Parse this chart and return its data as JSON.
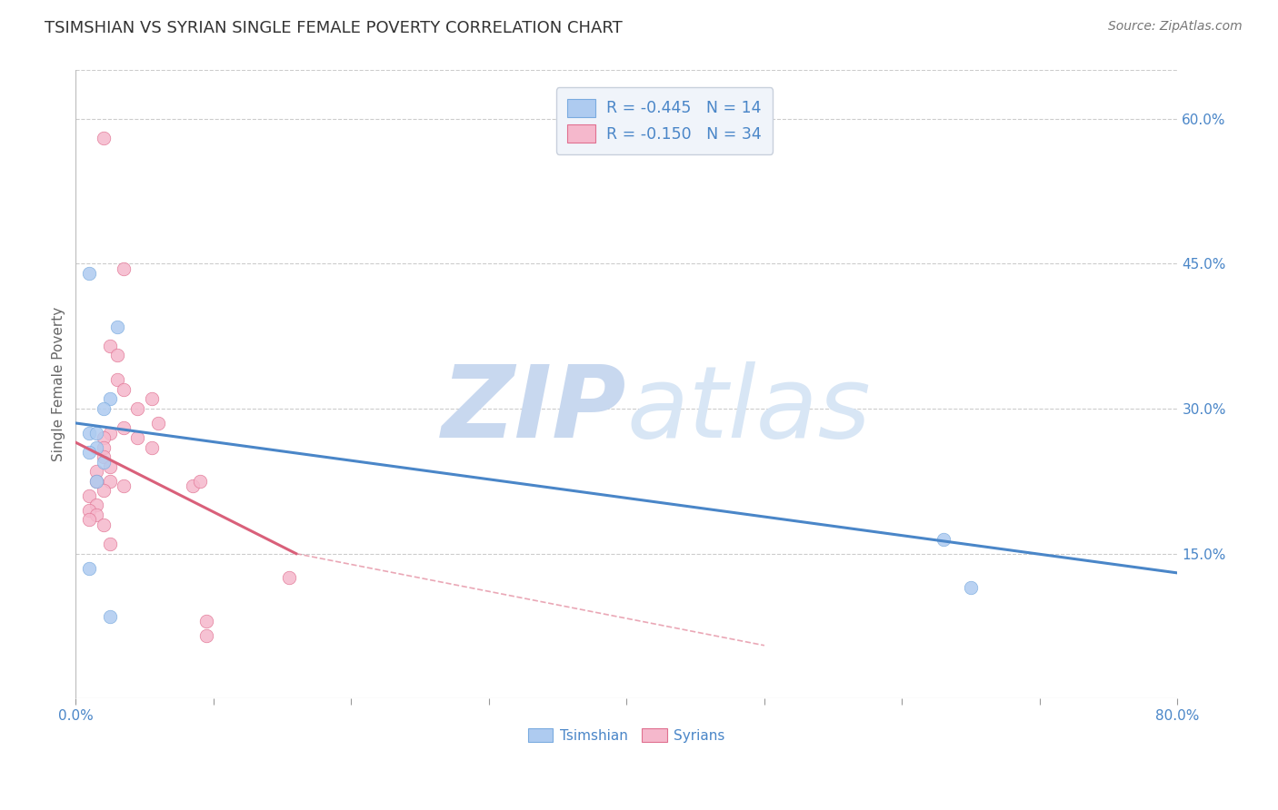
{
  "title": "TSIMSHIAN VS SYRIAN SINGLE FEMALE POVERTY CORRELATION CHART",
  "source_text": "Source: ZipAtlas.com",
  "ylabel": "Single Female Poverty",
  "xlim": [
    0.0,
    80.0
  ],
  "ylim": [
    0.0,
    65.0
  ],
  "xticks_labeled": [
    0.0,
    80.0
  ],
  "xticks_minor": [
    10.0,
    20.0,
    30.0,
    40.0,
    50.0,
    60.0,
    70.0
  ],
  "yticks_right": [
    15.0,
    30.0,
    45.0,
    60.0
  ],
  "watermark_zip": "ZIP",
  "watermark_atlas": "atlas",
  "legend_entries": [
    {
      "R": "-0.445",
      "N": "14",
      "dot_color": "#aecbf0",
      "edge_color": "#7aabdf"
    },
    {
      "R": "-0.150",
      "N": "34",
      "dot_color": "#f5b8cc",
      "edge_color": "#e07090"
    }
  ],
  "tsimshian_points": [
    [
      1.0,
      44.0
    ],
    [
      3.0,
      38.5
    ],
    [
      1.0,
      27.5
    ],
    [
      2.5,
      31.0
    ],
    [
      2.0,
      30.0
    ],
    [
      1.5,
      27.5
    ],
    [
      1.5,
      26.0
    ],
    [
      1.0,
      25.5
    ],
    [
      2.0,
      24.5
    ],
    [
      1.5,
      22.5
    ],
    [
      1.0,
      13.5
    ],
    [
      63.0,
      16.5
    ],
    [
      65.0,
      11.5
    ],
    [
      2.5,
      8.5
    ]
  ],
  "syrian_points": [
    [
      2.0,
      58.0
    ],
    [
      3.5,
      44.5
    ],
    [
      2.5,
      36.5
    ],
    [
      3.0,
      35.5
    ],
    [
      3.0,
      33.0
    ],
    [
      3.5,
      32.0
    ],
    [
      5.5,
      31.0
    ],
    [
      4.5,
      30.0
    ],
    [
      3.5,
      28.0
    ],
    [
      6.0,
      28.5
    ],
    [
      2.5,
      27.5
    ],
    [
      2.0,
      27.0
    ],
    [
      4.5,
      27.0
    ],
    [
      2.0,
      26.0
    ],
    [
      5.5,
      26.0
    ],
    [
      2.0,
      25.0
    ],
    [
      2.5,
      24.0
    ],
    [
      1.5,
      23.5
    ],
    [
      1.5,
      22.5
    ],
    [
      2.5,
      22.5
    ],
    [
      3.5,
      22.0
    ],
    [
      2.0,
      21.5
    ],
    [
      1.0,
      21.0
    ],
    [
      1.5,
      20.0
    ],
    [
      1.0,
      19.5
    ],
    [
      1.5,
      19.0
    ],
    [
      1.0,
      18.5
    ],
    [
      2.0,
      18.0
    ],
    [
      2.5,
      16.0
    ],
    [
      8.5,
      22.0
    ],
    [
      9.0,
      22.5
    ],
    [
      9.5,
      8.0
    ],
    [
      9.5,
      6.5
    ],
    [
      15.5,
      12.5
    ]
  ],
  "tsimshian_line": {
    "x0": 0.0,
    "y0": 28.5,
    "x1": 80.0,
    "y1": 13.0
  },
  "syrian_line_solid": {
    "x0": 0.0,
    "y0": 26.5,
    "x1": 16.0,
    "y1": 15.0
  },
  "syrian_line_dashed": {
    "x0": 16.0,
    "y0": 15.0,
    "x1": 50.0,
    "y1": 5.5
  },
  "blue_line_color": "#4a86c8",
  "pink_line_color": "#d9607a",
  "dot_blue_fill": "#aecbf0",
  "dot_blue_edge": "#7aabdf",
  "dot_pink_fill": "#f5b8cc",
  "dot_pink_edge": "#e07090",
  "bg_color": "#ffffff",
  "grid_color": "#cccccc",
  "axis_tick_color": "#4a86c8",
  "title_color": "#333333",
  "title_fontsize": 13,
  "source_fontsize": 10,
  "watermark_zip_color": "#c8d8ef",
  "watermark_atlas_color": "#d8e6f5",
  "watermark_fontsize": 80,
  "dot_size": 110,
  "legend_box_color": "#f0f4fa",
  "legend_edge_color": "#c8d0dc"
}
